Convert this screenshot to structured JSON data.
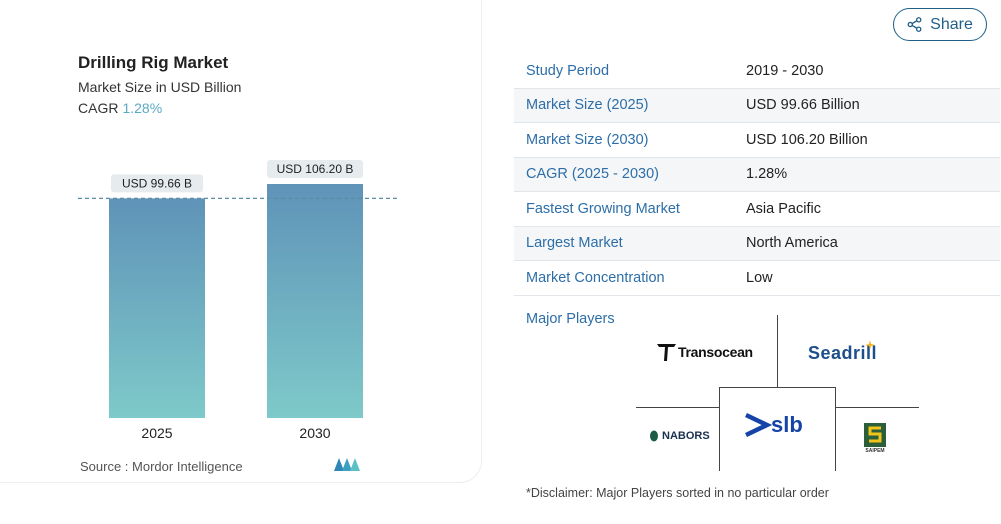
{
  "chart_panel": {
    "title": "Drilling Rig Market",
    "subtitle": "Market Size in USD Billion",
    "cagr_label": "CAGR",
    "cagr_value": "1.28%",
    "source_label": "Source :",
    "source_value": "Mordor Intelligence",
    "logo_icon": "mordor-intelligence-logo-icon"
  },
  "chart_data": {
    "type": "bar",
    "categories": [
      "2025",
      "2030"
    ],
    "values": [
      99.66,
      106.2
    ],
    "data_labels": [
      "USD 99.66 B",
      "USD 106.20 B"
    ],
    "title": "Drilling Rig Market",
    "subtitle": "Market Size in USD Billion",
    "xlabel": "",
    "ylabel": "",
    "ylim": [
      0,
      106.2
    ],
    "reference_line": 99.66,
    "grid": false,
    "colors": {
      "bar_top": "#5f93b8",
      "bar_bottom": "#7ec9c9",
      "label_bg": "#e6ebee",
      "ref_line": "#5a8bab"
    }
  },
  "share": {
    "label": "Share",
    "icon": "share-icon",
    "color": "#1f5f87"
  },
  "summary_table": {
    "rows": [
      {
        "key": "Study Period",
        "value": "2019 - 2030"
      },
      {
        "key": "Market Size (2025)",
        "value": "USD 99.66 Billion"
      },
      {
        "key": "Market Size (2030)",
        "value": "USD 106.20 Billion"
      },
      {
        "key": "CAGR (2025 - 2030)",
        "value": "1.28%"
      },
      {
        "key": "Fastest Growing Market",
        "value": "Asia Pacific"
      },
      {
        "key": "Largest Market",
        "value": "North America"
      },
      {
        "key": "Market Concentration",
        "value": "Low"
      }
    ]
  },
  "players": {
    "label": "Major Players",
    "logos": [
      {
        "name": "Transocean",
        "text": "Transocean",
        "icon": "transocean-logo-icon"
      },
      {
        "name": "Seadrill",
        "text": "Seadrill",
        "icon": "seadrill-logo-icon"
      },
      {
        "name": "Nabors",
        "text": "NABORS",
        "icon": "nabors-logo-icon"
      },
      {
        "name": "SLB",
        "text": "slb",
        "icon": "slb-logo-icon"
      },
      {
        "name": "Saipem",
        "text": "SAIPEM",
        "icon": "saipem-logo-icon"
      }
    ],
    "disclaimer": "*Disclaimer: Major Players sorted in no particular order"
  },
  "accent_colors": {
    "link_blue": "#2d6ea8",
    "cagr_teal": "#5aa9c6"
  }
}
